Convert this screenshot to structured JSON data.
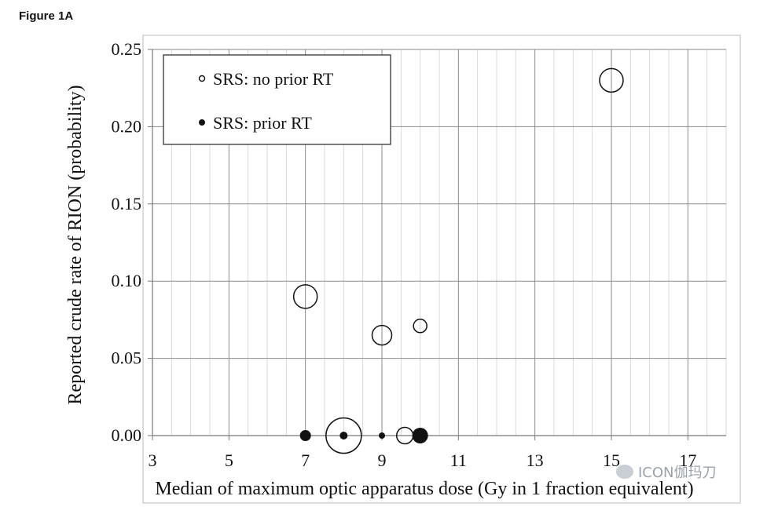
{
  "figure_label": "Figure 1A",
  "watermark_text": "ICON伽玛刀",
  "chart_data": {
    "type": "scatter",
    "xlabel": "Median of maximum optic apparatus dose (Gy in 1 fraction equivalent)",
    "ylabel": "Reported crude rate of RION  (probability)",
    "xlim": [
      3,
      18
    ],
    "ylim": [
      0,
      0.25
    ],
    "x_ticks": [
      "3",
      "5",
      "7",
      "9",
      "11",
      "13",
      "15",
      "17"
    ],
    "y_ticks": [
      "0.00",
      "0.05",
      "0.10",
      "0.15",
      "0.20",
      "0.25"
    ],
    "grid": true,
    "legend_position": "top-left",
    "bubble_size_note": "marker area varies by study",
    "series": [
      {
        "name": "SRS: no prior RT",
        "marker": "open-circle",
        "points": [
          {
            "x": 15,
            "y": 0.23,
            "size": 3
          },
          {
            "x": 7,
            "y": 0.09,
            "size": 3
          },
          {
            "x": 9,
            "y": 0.065,
            "size": 2.5
          },
          {
            "x": 10,
            "y": 0.071,
            "size": 1.7
          },
          {
            "x": 8,
            "y": 0.0,
            "size": 4.5
          },
          {
            "x": 9.6,
            "y": 0.0,
            "size": 2.1
          }
        ]
      },
      {
        "name": "SRS: prior RT",
        "marker": "filled-circle",
        "points": [
          {
            "x": 7,
            "y": 0.0,
            "size": 1.4
          },
          {
            "x": 8,
            "y": 0.0,
            "size": 1.0
          },
          {
            "x": 9,
            "y": 0.0,
            "size": 0.8
          },
          {
            "x": 10,
            "y": 0.0,
            "size": 2.0
          }
        ]
      }
    ]
  }
}
